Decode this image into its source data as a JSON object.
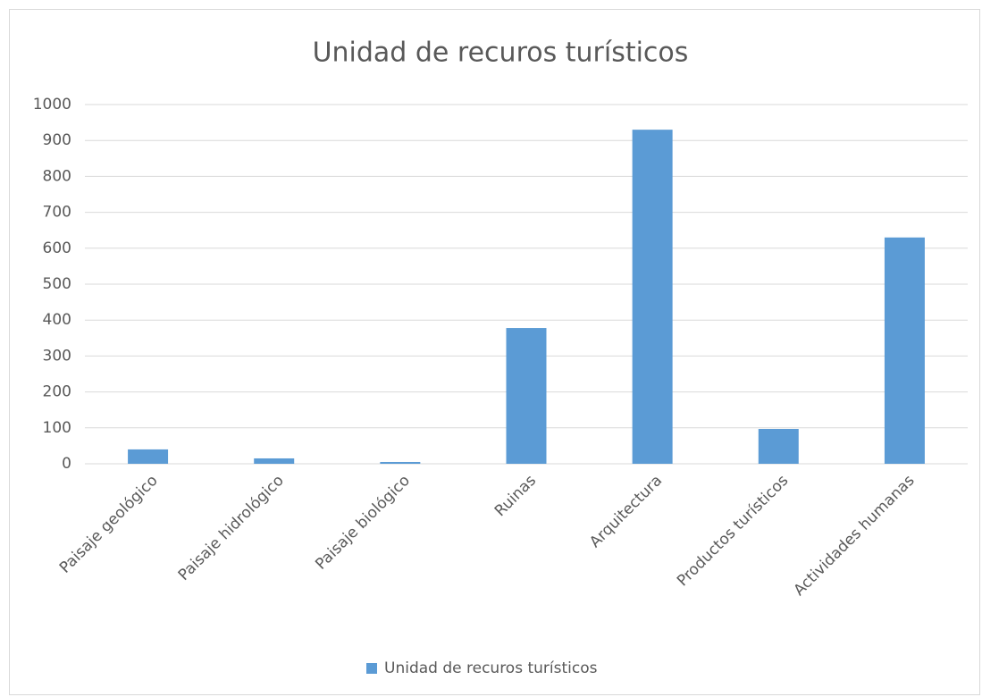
{
  "chart_data": {
    "type": "bar",
    "title": "Unidad de recuros turísticos",
    "categories": [
      "Paisaje geológico",
      "Paisaje hidrológico",
      "Paisaje biológico",
      "Ruinas",
      "Arquitectura",
      "Productos turísticos",
      "Actividades humanas"
    ],
    "series": [
      {
        "name": "Unidad de recuros turísticos",
        "color": "#5b9bd5",
        "values": [
          40,
          15,
          5,
          378,
          930,
          97,
          630
        ]
      }
    ],
    "ylim": [
      0,
      1000
    ],
    "yticks": [
      0,
      100,
      200,
      300,
      400,
      500,
      600,
      700,
      800,
      900,
      1000
    ],
    "grid": true,
    "legend": "bottom"
  }
}
